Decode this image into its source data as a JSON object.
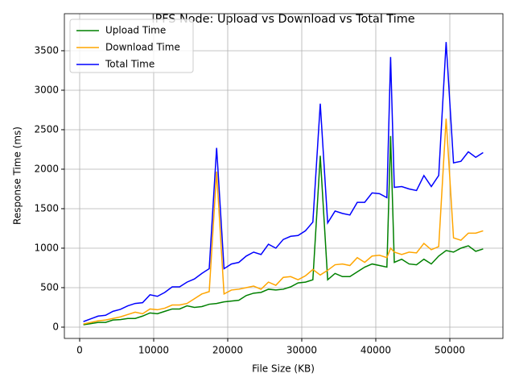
{
  "chart_data": {
    "type": "line",
    "title": "IPFS Node: Upload vs Download vs Total Time",
    "x_label": "File Size (KB)",
    "y_label": "Response Time (ms)",
    "x": [
      500,
      1500,
      2500,
      3500,
      4500,
      5500,
      6500,
      7500,
      8500,
      9500,
      10500,
      11500,
      12500,
      13500,
      14500,
      15500,
      16500,
      17500,
      18500,
      19500,
      20500,
      21500,
      22500,
      23500,
      24500,
      25500,
      26500,
      27500,
      28500,
      29500,
      30500,
      31500,
      32500,
      33500,
      34500,
      35500,
      36500,
      37500,
      38500,
      39500,
      40500,
      41500,
      42000,
      42500,
      43500,
      44500,
      45500,
      46500,
      47500,
      48500,
      49500,
      50500,
      51500,
      52500,
      53500,
      54500
    ],
    "series": [
      {
        "name": "Upload Time",
        "color": "#008000",
        "values": [
          30,
          45,
          60,
          60,
          90,
          95,
          110,
          110,
          140,
          180,
          170,
          200,
          230,
          230,
          270,
          250,
          260,
          290,
          300,
          320,
          330,
          340,
          400,
          430,
          440,
          480,
          470,
          480,
          510,
          560,
          570,
          600,
          2170,
          600,
          680,
          640,
          640,
          700,
          760,
          800,
          780,
          760,
          2420,
          820,
          860,
          800,
          790,
          860,
          800,
          900,
          970,
          950,
          1000,
          1030,
          960,
          990
        ]
      },
      {
        "name": "Download Time",
        "color": "#ffa500",
        "values": [
          40,
          60,
          80,
          90,
          110,
          130,
          160,
          190,
          170,
          230,
          220,
          240,
          280,
          280,
          300,
          360,
          420,
          450,
          1970,
          420,
          470,
          480,
          500,
          520,
          480,
          570,
          530,
          630,
          640,
          600,
          650,
          730,
          660,
          720,
          790,
          800,
          780,
          880,
          820,
          900,
          910,
          880,
          1000,
          950,
          920,
          950,
          940,
          1060,
          980,
          1020,
          2640,
          1130,
          1100,
          1190,
          1190,
          1220
        ]
      },
      {
        "name": "Total Time",
        "color": "#0000ff",
        "values": [
          70,
          105,
          140,
          150,
          200,
          225,
          270,
          300,
          310,
          410,
          390,
          440,
          510,
          510,
          570,
          610,
          680,
          740,
          2270,
          740,
          800,
          820,
          900,
          950,
          920,
          1050,
          1000,
          1110,
          1150,
          1160,
          1220,
          1330,
          2830,
          1320,
          1470,
          1440,
          1420,
          1580,
          1580,
          1700,
          1690,
          1640,
          3420,
          1770,
          1780,
          1750,
          1730,
          1920,
          1780,
          1920,
          3610,
          2080,
          2100,
          2220,
          2150,
          2210
        ]
      }
    ],
    "xlim": [
      -2065,
      57174
    ],
    "xticks": [
      0,
      10000,
      20000,
      30000,
      40000,
      50000
    ],
    "ylim": [
      -143,
      3969
    ],
    "yticks": [
      0,
      500,
      1000,
      1500,
      2000,
      2500,
      3000,
      3500
    ],
    "grid": true,
    "legend": "upper-left"
  }
}
